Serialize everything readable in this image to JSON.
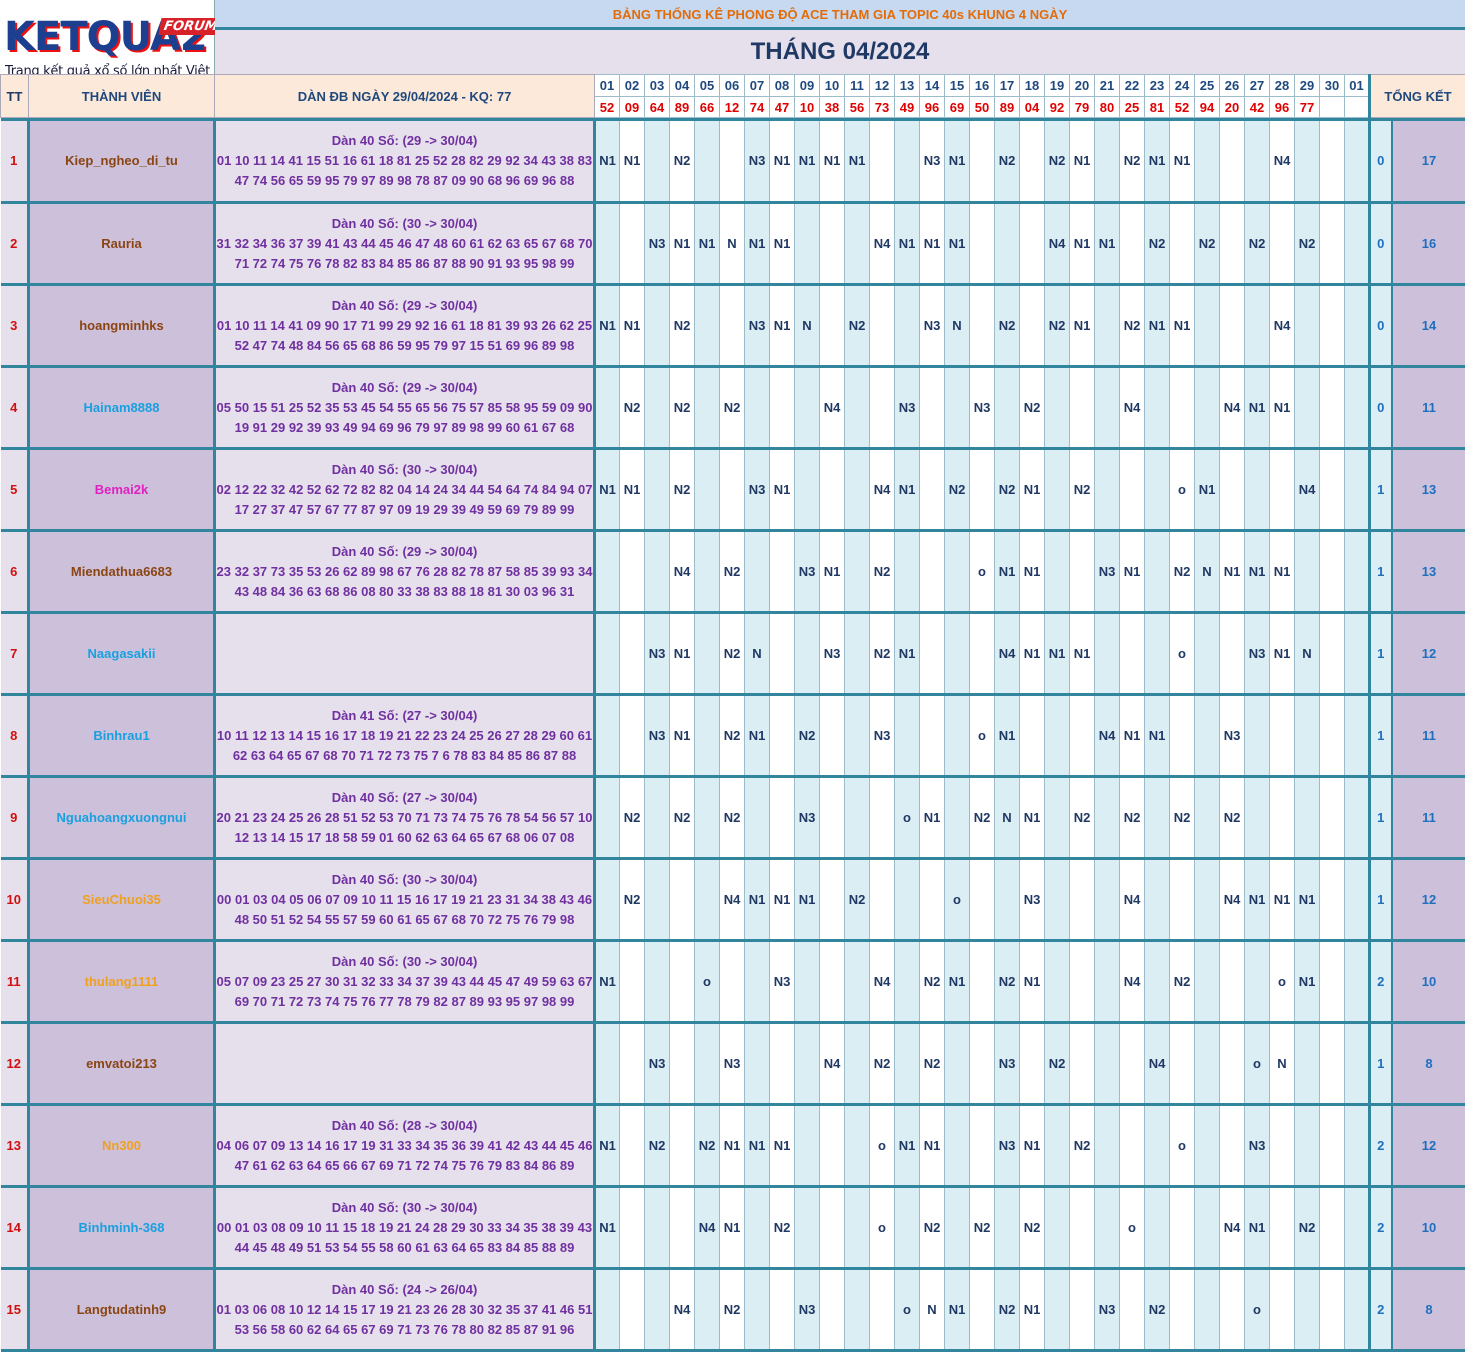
{
  "logo": {
    "word": "KETQUA2",
    "forum": "FORUM",
    "tagline": "Trang kết quả xổ số lớn nhất Việt Nam"
  },
  "title": "BẢNG THỐNG KÊ PHONG ĐỘ ACE THAM GIA TOPIC 40s KHUNG 4 NGÀY",
  "month": "THÁNG 04/2024",
  "headers": {
    "tt": "TT",
    "member": "THÀNH VIÊN",
    "dan": "DÀN ĐB NGÀY 29/04/2024 - KQ: 77",
    "summary": "TỔNG KẾT"
  },
  "days": [
    "01",
    "02",
    "03",
    "04",
    "05",
    "06",
    "07",
    "08",
    "09",
    "10",
    "11",
    "12",
    "13",
    "14",
    "15",
    "16",
    "17",
    "18",
    "19",
    "20",
    "21",
    "22",
    "23",
    "24",
    "25",
    "26",
    "27",
    "28",
    "29",
    "30",
    "01"
  ],
  "results": [
    "52",
    "09",
    "64",
    "89",
    "66",
    "12",
    "74",
    "47",
    "10",
    "38",
    "56",
    "73",
    "49",
    "96",
    "69",
    "50",
    "89",
    "04",
    "92",
    "79",
    "80",
    "25",
    "81",
    "52",
    "94",
    "20",
    "42",
    "96",
    "77",
    "",
    ""
  ],
  "rows": [
    {
      "tt": "1",
      "name": "Kiep_ngheo_di_tu",
      "color": "#8b4513",
      "dan_title": "Dàn 40 Số: (29 -> 30/04)",
      "dan_line1": "01 10 11 14 41 15 51 16 61 18 81 25 52 28 82 29 92 34 43 38 83",
      "dan_line2": "47 74 56 65 59 95 79 97 89 98 78 87 09 90 68 96 69 96 88",
      "cells": [
        "N1",
        "N1",
        "",
        "N2",
        "",
        "",
        "N3",
        "N1",
        "N1",
        "N1",
        "N1",
        "",
        "",
        "N3",
        "N1",
        "",
        "N2",
        "",
        "N2",
        "N1",
        "",
        "N2",
        "N1",
        "N1",
        "",
        "",
        "",
        "N4",
        "",
        "",
        ""
      ],
      "tk1": "0",
      "tk2": "17"
    },
    {
      "tt": "2",
      "name": "Rauria",
      "color": "#8b4513",
      "dan_title": "Dàn 40 Số: (30 -> 30/04)",
      "dan_line1": "31 32 34 36 37 39 41 43 44 45 46 47 48 60 61 62 63 65 67 68 70",
      "dan_line2": "71 72 74 75 76 78 82 83 84 85 86 87 88 90 91 93 95 98 99",
      "cells": [
        "",
        "",
        "N3",
        "N1",
        "N1",
        "N",
        "N1",
        "N1",
        "",
        "",
        "",
        "N4",
        "N1",
        "N1",
        "N1",
        "",
        "",
        "",
        "N4",
        "N1",
        "N1",
        "",
        "N2",
        "",
        "N2",
        "",
        "N2",
        "",
        "N2",
        "",
        ""
      ],
      "tk1": "0",
      "tk2": "16"
    },
    {
      "tt": "3",
      "name": "hoangminhks",
      "color": "#8b4513",
      "dan_title": "Dàn 40 Số: (29 -> 30/04)",
      "dan_line1": "01 10 11 14 41 09 90 17 71 99 29 92 16 61 18 81 39 93 26 62 25",
      "dan_line2": "52 47 74 48 84 56 65 68 86 59 95 79 97 15 51 69 96 89 98",
      "cells": [
        "N1",
        "N1",
        "",
        "N2",
        "",
        "",
        "N3",
        "N1",
        "N",
        "",
        "N2",
        "",
        "",
        "N3",
        "N",
        "",
        "N2",
        "",
        "N2",
        "N1",
        "",
        "N2",
        "N1",
        "N1",
        "",
        "",
        "",
        "N4",
        "",
        "",
        ""
      ],
      "tk1": "0",
      "tk2": "14"
    },
    {
      "tt": "4",
      "name": "Hainam8888",
      "color": "#1aa0e0",
      "dan_title": "Dàn 40 Số: (29 -> 30/04)",
      "dan_line1": "05 50 15 51 25 52 35 53 45 54 55 65 56 75 57 85 58 95 59 09 90",
      "dan_line2": "19 91 29 92 39 93 49 94 69 96 79 97 89 98 99 60 61 67 68",
      "cells": [
        "",
        "N2",
        "",
        "N2",
        "",
        "N2",
        "",
        "",
        "",
        "N4",
        "",
        "",
        "N3",
        "",
        "",
        "N3",
        "",
        "N2",
        "",
        "",
        "",
        "N4",
        "",
        "",
        "",
        "N4",
        "N1",
        "N1",
        "",
        "",
        ""
      ],
      "tk1": "0",
      "tk2": "11"
    },
    {
      "tt": "5",
      "name": "Bemai2k",
      "color": "#e020c0",
      "dan_title": "Dàn 40 Số: (30 -> 30/04)",
      "dan_line1": "02 12 22 32 42 52 62 72 82 82 04 14 24 34 44 54 64 74 84 94 07",
      "dan_line2": "17 27 37 47 57 67 77 87 97 09 19 29 39 49 59 69 79 89 99",
      "cells": [
        "N1",
        "N1",
        "",
        "N2",
        "",
        "",
        "N3",
        "N1",
        "",
        "",
        "",
        "N4",
        "N1",
        "",
        "N2",
        "",
        "N2",
        "N1",
        "",
        "N2",
        "",
        "",
        "",
        "o",
        "N1",
        "",
        "",
        "",
        "N4",
        "",
        ""
      ],
      "tk1": "1",
      "tk2": "13"
    },
    {
      "tt": "6",
      "name": "Miendathua6683",
      "color": "#8b4513",
      "dan_title": "Dàn 40 Số: (29 -> 30/04)",
      "dan_line1": "23 32 37 73 35 53 26 62 89 98 67 76 28 82 78 87 58 85 39 93 34",
      "dan_line2": "43 48 84 36 63 68 86 08 80 33 38 83 88 18 81 30 03 96 31",
      "cells": [
        "",
        "",
        "",
        "N4",
        "",
        "N2",
        "",
        "",
        "N3",
        "N1",
        "",
        "N2",
        "",
        "",
        "",
        "o",
        "N1",
        "N1",
        "",
        "",
        "N3",
        "N1",
        "",
        "N2",
        "N",
        "N1",
        "N1",
        "N1",
        "",
        "",
        ""
      ],
      "tk1": "1",
      "tk2": "13"
    },
    {
      "tt": "7",
      "name": "Naagasakii",
      "color": "#1aa0e0",
      "dan_title": "",
      "dan_line1": "",
      "dan_line2": "",
      "cells": [
        "",
        "",
        "N3",
        "N1",
        "",
        "N2",
        "N",
        "",
        "",
        "N3",
        "",
        "N2",
        "N1",
        "",
        "",
        "",
        "N4",
        "N1",
        "N1",
        "N1",
        "",
        "",
        "",
        "o",
        "",
        "",
        "N3",
        "N1",
        "N",
        "",
        ""
      ],
      "tk1": "1",
      "tk2": "12"
    },
    {
      "tt": "8",
      "name": "Binhrau1",
      "color": "#1aa0e0",
      "dan_title": "Dàn 41 Số: (27 -> 30/04)",
      "dan_line1": "10 11 12 13 14 15 16 17 18 19 21 22 23 24 25 26 27 28 29 60 61",
      "dan_line2": "62 63 64 65 67 68 70 71 72 73 75 7 6 78 83 84 85 86 87 88",
      "cells": [
        "",
        "",
        "N3",
        "N1",
        "",
        "N2",
        "N1",
        "",
        "N2",
        "",
        "",
        "N3",
        "",
        "",
        "",
        "o",
        "N1",
        "",
        "",
        "",
        "N4",
        "N1",
        "N1",
        "",
        "",
        "N3",
        "",
        "",
        "",
        "",
        ""
      ],
      "tk1": "1",
      "tk2": "11"
    },
    {
      "tt": "9",
      "name": "Nguahoangxuongnui",
      "color": "#1aa0e0",
      "dan_title": "Dàn 40 Số: (27 -> 30/04)",
      "dan_line1": "20 21 23 24 25 26 28 51 52 53 70 71 73 74 75 76 78 54 56 57 10",
      "dan_line2": "12 13 14 15 17 18 58 59 01 60 62 63 64 65 67 68 06 07 08",
      "cells": [
        "",
        "N2",
        "",
        "N2",
        "",
        "N2",
        "",
        "",
        "N3",
        "",
        "",
        "",
        "o",
        "N1",
        "",
        "N2",
        "N",
        "N1",
        "",
        "N2",
        "",
        "N2",
        "",
        "N2",
        "",
        "N2",
        "",
        "",
        "",
        "",
        ""
      ],
      "tk1": "1",
      "tk2": "11"
    },
    {
      "tt": "10",
      "name": "SieuChuoi35",
      "color": "#f0a020",
      "dan_title": "Dàn 40 Số: (30 -> 30/04)",
      "dan_line1": "00 01 03 04 05 06 07 09 10 11 15 16 17 19 21 23 31 34 38 43 46",
      "dan_line2": "48 50 51 52 54 55 57 59 60 61 65 67 68 70 72 75 76 79 98",
      "cells": [
        "",
        "N2",
        "",
        "",
        "",
        "N4",
        "N1",
        "N1",
        "N1",
        "",
        "N2",
        "",
        "",
        "",
        "o",
        "",
        "",
        "N3",
        "",
        "",
        "",
        "N4",
        "",
        "",
        "",
        "N4",
        "N1",
        "N1",
        "N1",
        "",
        ""
      ],
      "tk1": "1",
      "tk2": "12"
    },
    {
      "tt": "11",
      "name": "thulang1111",
      "color": "#f0a020",
      "dan_title": "Dàn 40 Số: (30 -> 30/04)",
      "dan_line1": "05 07 09 23 25 27 30 31 32 33 34 37 39 43 44 45 47 49 59 63 67",
      "dan_line2": "69 70 71 72 73 74 75 76 77 78 79 82 87 89 93 95 97 98 99",
      "cells": [
        "N1",
        "",
        "",
        "",
        "o",
        "",
        "",
        "N3",
        "",
        "",
        "",
        "N4",
        "",
        "N2",
        "N1",
        "",
        "N2",
        "N1",
        "",
        "",
        "",
        "N4",
        "",
        "N2",
        "",
        "",
        "",
        "o",
        "N1",
        "",
        ""
      ],
      "tk1": "2",
      "tk2": "10"
    },
    {
      "tt": "12",
      "name": "emvatoi213",
      "color": "#8b4513",
      "dan_title": "",
      "dan_line1": "",
      "dan_line2": "",
      "cells": [
        "",
        "",
        "N3",
        "",
        "",
        "N3",
        "",
        "",
        "",
        "N4",
        "",
        "N2",
        "",
        "N2",
        "",
        "",
        "N3",
        "",
        "N2",
        "",
        "",
        "",
        "N4",
        "",
        "",
        "",
        "o",
        "N",
        "",
        "",
        ""
      ],
      "tk1": "1",
      "tk2": "8"
    },
    {
      "tt": "13",
      "name": "Nn300",
      "color": "#f0a020",
      "dan_title": "Dàn 40 Số: (28 -> 30/04)",
      "dan_line1": "04 06 07 09 13 14 16 17 19 31 33 34 35 36 39 41 42 43 44 45 46",
      "dan_line2": "47 61 62 63 64 65 66 67 69 71 72 74 75 76 79 83 84 86 89",
      "cells": [
        "N1",
        "",
        "N2",
        "",
        "N2",
        "N1",
        "N1",
        "N1",
        "",
        "",
        "",
        "o",
        "N1",
        "N1",
        "",
        "",
        "N3",
        "N1",
        "",
        "N2",
        "",
        "",
        "",
        "o",
        "",
        "",
        "N3",
        "",
        "",
        "",
        ""
      ],
      "tk1": "2",
      "tk2": "12"
    },
    {
      "tt": "14",
      "name": "Binhminh-368",
      "color": "#1aa0e0",
      "dan_title": "Dàn 40 Số: (30 -> 30/04)",
      "dan_line1": "00 01 03 08 09 10 11 15 18 19 21 24 28 29 30 33 34 35 38 39 43",
      "dan_line2": "44 45 48 49 51 53 54 55 58 60 61 63 64 65 83 84 85 88 89",
      "cells": [
        "N1",
        "",
        "",
        "",
        "N4",
        "N1",
        "",
        "N2",
        "",
        "",
        "",
        "o",
        "",
        "N2",
        "",
        "N2",
        "",
        "N2",
        "",
        "",
        "",
        "o",
        "",
        "",
        "",
        "N4",
        "N1",
        "",
        "N2",
        "",
        ""
      ],
      "tk1": "2",
      "tk2": "10"
    },
    {
      "tt": "15",
      "name": "Langtudatinh9",
      "color": "#8b4513",
      "dan_title": "Dàn 40 Số: (24 -> 26/04)",
      "dan_line1": "01 03 06 08 10 12 14 15 17 19 21 23 26 28 30 32 35 37 41 46 51",
      "dan_line2": "53 56 58 60 62 64 65 67 69 71 73 76 78 80 82 85 87 91 96",
      "cells": [
        "",
        "",
        "",
        "N4",
        "",
        "N2",
        "",
        "",
        "N3",
        "",
        "",
        "",
        "o",
        "N",
        "N1",
        "",
        "N2",
        "N1",
        "",
        "",
        "N3",
        "",
        "N2",
        "",
        "",
        "",
        "o",
        "",
        "",
        "",
        ""
      ],
      "tk1": "2",
      "tk2": "8"
    }
  ]
}
